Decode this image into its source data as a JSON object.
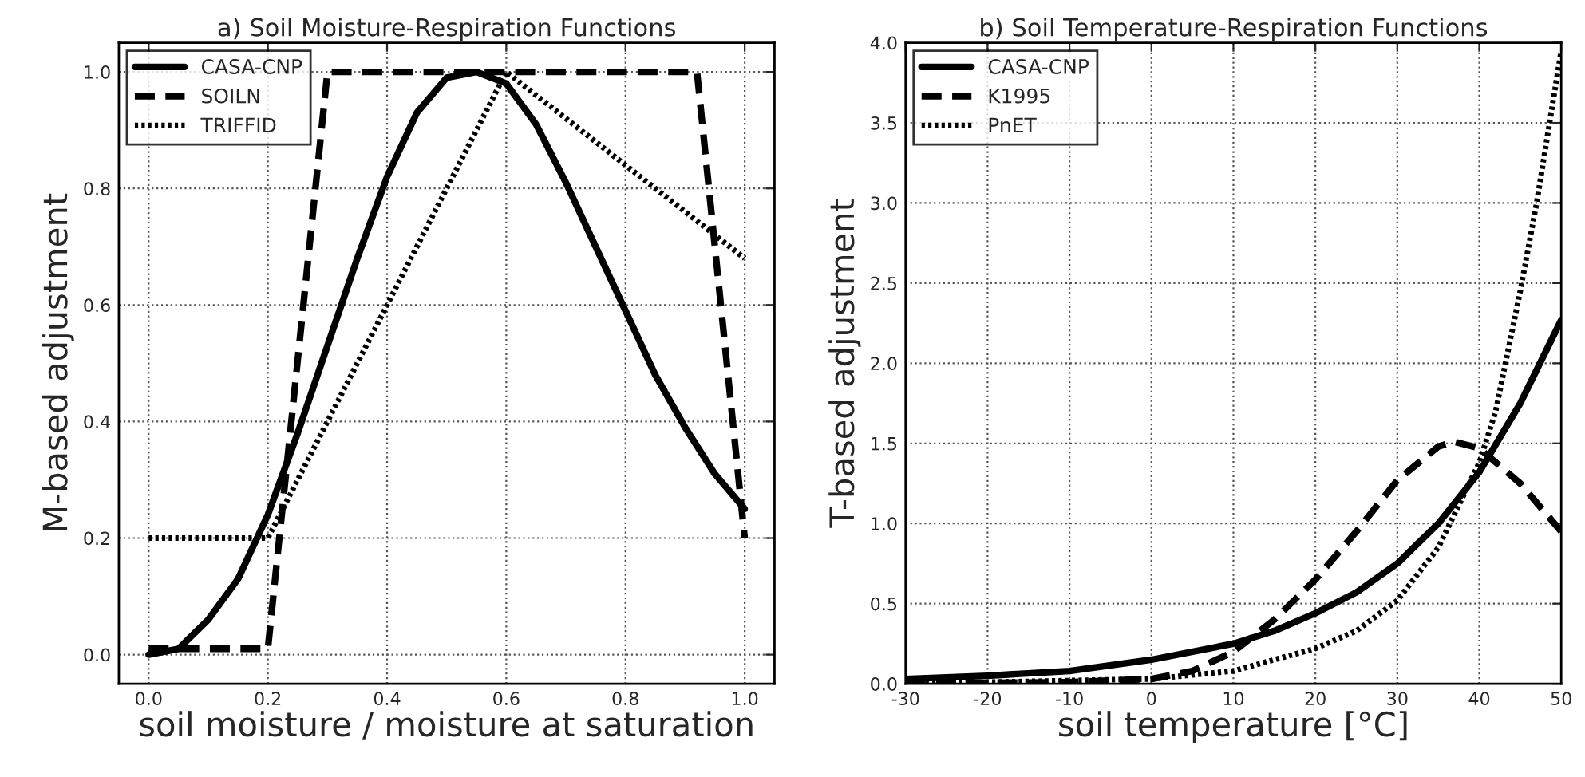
{
  "chart_data": [
    {
      "type": "line",
      "title": "a) Soil Moisture-Respiration Functions",
      "xlabel": "soil moisture / moisture at saturation",
      "ylabel": "M-based adjustment",
      "xlim": [
        -0.05,
        1.05
      ],
      "ylim": [
        -0.05,
        1.05
      ],
      "xticks": [
        {
          "value": 0,
          "label": "0.0"
        },
        0.2,
        0.4,
        0.6,
        0.8,
        {
          "value": 1,
          "label": "1.0"
        }
      ],
      "yticks": [
        {
          "value": 0,
          "label": "0.0"
        },
        0.2,
        0.4,
        0.6,
        0.8,
        {
          "value": 1,
          "label": "1.0"
        }
      ],
      "grid": true,
      "legend": "top left",
      "series": [
        {
          "name": "CASA-CNP",
          "color": "#000000",
          "line_style": "solid",
          "x": [
            0,
            0.05,
            0.1,
            0.15,
            0.2,
            0.25,
            0.3,
            0.35,
            0.4,
            0.45,
            0.5,
            0.55,
            0.6,
            0.65,
            0.7,
            0.75,
            0.8,
            0.85,
            0.9,
            0.95,
            1.0
          ],
          "values": [
            0,
            0.01,
            0.06,
            0.13,
            0.24,
            0.38,
            0.53,
            0.68,
            0.82,
            0.93,
            0.99,
            1.0,
            0.98,
            0.91,
            0.81,
            0.7,
            0.59,
            0.48,
            0.39,
            0.31,
            0.25
          ]
        },
        {
          "name": "SOILN",
          "color": "#000000",
          "line_style": "dashed",
          "x": [
            0,
            0.2,
            0.3,
            0.92,
            1.0
          ],
          "values": [
            0.01,
            0.01,
            1.0,
            1.0,
            0.2
          ]
        },
        {
          "name": "TRIFFID",
          "color": "#000000",
          "line_style": "dotted",
          "x": [
            0,
            0.2,
            0.6,
            1.0
          ],
          "values": [
            0.2,
            0.2,
            1.0,
            0.68
          ]
        }
      ]
    },
    {
      "type": "line",
      "title": "b) Soil Temperature-Respiration Functions",
      "xlabel": "soil temperature [°C]",
      "ylabel": "T-based adjustment",
      "xlim": [
        -30,
        50
      ],
      "ylim": [
        0,
        4
      ],
      "xticks": [
        -30,
        -20,
        -10,
        0,
        10,
        20,
        30,
        40,
        50
      ],
      "yticks": [
        {
          "value": 0,
          "label": "0.0"
        },
        0.5,
        {
          "value": 1,
          "label": "1.0"
        },
        1.5,
        {
          "value": 2,
          "label": "2.0"
        },
        2.5,
        {
          "value": 3,
          "label": "3.0"
        },
        3.5,
        {
          "value": 4,
          "label": "4.0"
        }
      ],
      "grid": true,
      "legend": "top left",
      "series": [
        {
          "name": "CASA-CNP",
          "color": "#000000",
          "line_style": "solid",
          "x": [
            -30,
            -20,
            -10,
            0,
            10,
            15,
            20,
            25,
            30,
            35,
            40,
            45,
            50
          ],
          "values": [
            0.03,
            0.05,
            0.08,
            0.15,
            0.25,
            0.33,
            0.44,
            0.57,
            0.75,
            1.0,
            1.32,
            1.75,
            2.27
          ]
        },
        {
          "name": "K1995",
          "color": "#000000",
          "line_style": "dashed",
          "x": [
            -30,
            -10,
            0,
            5,
            10,
            15,
            20,
            25,
            30,
            35,
            37,
            40,
            45,
            50
          ],
          "values": [
            0.0,
            0.01,
            0.03,
            0.08,
            0.2,
            0.4,
            0.65,
            0.95,
            1.27,
            1.48,
            1.51,
            1.47,
            1.25,
            0.95
          ]
        },
        {
          "name": "PnET",
          "color": "#000000",
          "line_style": "dotted",
          "x": [
            -30,
            0,
            10,
            20,
            25,
            30,
            35,
            40,
            42,
            45,
            47,
            50
          ],
          "values": [
            0.0,
            0.03,
            0.08,
            0.22,
            0.33,
            0.52,
            0.85,
            1.38,
            1.7,
            2.45,
            3.0,
            3.95
          ]
        }
      ]
    }
  ]
}
